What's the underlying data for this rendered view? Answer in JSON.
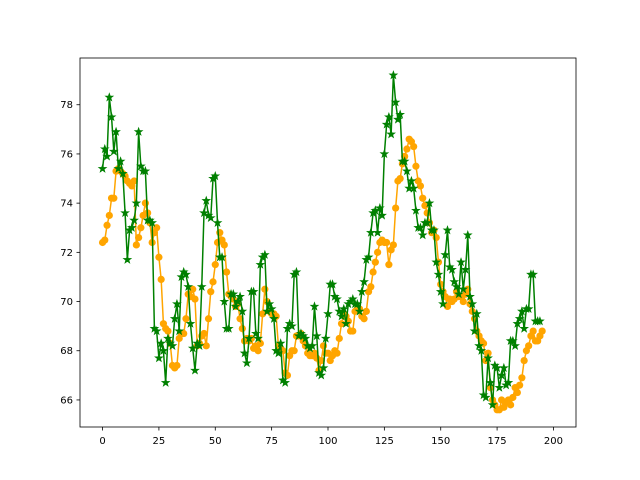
{
  "chart_data": {
    "type": "line",
    "title": "",
    "xlabel": "",
    "ylabel": "",
    "xlim": [
      -10,
      210
    ],
    "ylim": [
      64.9,
      79.9
    ],
    "x_ticks": [
      0,
      25,
      50,
      75,
      100,
      125,
      150,
      175,
      200
    ],
    "y_ticks": [
      66,
      68,
      70,
      72,
      74,
      76,
      78
    ],
    "grid": false,
    "legend": "none",
    "series": [
      {
        "color": "#FFA500",
        "marker": "circle",
        "values": [
          72.4,
          72.5,
          73.1,
          73.5,
          74.2,
          74.2,
          75.3,
          75.4,
          75.3,
          75.2,
          75.1,
          74.9,
          74.8,
          74.7,
          74.9,
          72.3,
          72.6,
          73.0,
          73.5,
          74.0,
          73.6,
          73.2,
          72.4,
          72.8,
          73.0,
          71.8,
          70.9,
          69.1,
          68.9,
          68.8,
          68.3,
          67.4,
          67.3,
          67.4,
          68.5,
          68.7,
          68.7,
          69.3,
          70.3,
          70.2,
          70.5,
          70.1,
          68.2,
          68.3,
          68.6,
          68.7,
          68.2,
          69.3,
          70.4,
          70.8,
          71.5,
          72.4,
          72.8,
          72.5,
          72.3,
          71.2,
          70.3,
          70.2,
          70.1,
          69.8,
          69.9,
          69.3,
          68.9,
          68.4,
          68.5,
          68.4,
          68.5,
          68.1,
          68.2,
          68.0,
          68.3,
          69.5,
          70.5,
          70.0,
          69.6,
          69.5,
          69.5,
          69.4,
          68.2,
          68.1,
          68.0,
          67.1,
          67.0,
          67.8,
          68.0,
          68.0,
          68.6,
          68.6,
          68.7,
          68.4,
          68.2,
          67.9,
          67.8,
          67.8,
          67.9,
          67.7,
          67.2,
          67.6,
          68.2,
          67.9,
          67.9,
          67.6,
          67.8,
          68.0,
          67.9,
          68.5,
          69.1,
          69.5,
          69.4,
          69.2,
          68.8,
          68.8,
          69.6,
          69.7,
          69.7,
          69.4,
          69.3,
          69.6,
          70.4,
          70.6,
          71.2,
          71.6,
          72.0,
          72.4,
          72.5,
          72.4,
          72.4,
          71.5,
          72.1,
          72.3,
          73.8,
          74.9,
          75.0,
          75.6,
          75.9,
          76.2,
          76.6,
          76.5,
          76.3,
          75.5,
          74.9,
          74.7,
          74.2,
          73.9,
          73.6,
          73.2,
          72.8,
          72.9,
          72.6,
          71.6,
          70.7,
          70.4,
          70.2,
          69.8,
          70.1,
          70.0,
          70.1,
          70.4,
          70.2,
          70.2,
          70.0,
          70.3,
          70.5,
          69.9,
          69.6,
          69.3,
          68.8,
          68.6,
          68.4,
          68.3,
          67.6,
          67.9,
          66.5,
          66.0,
          65.8,
          65.6,
          65.6,
          66.0,
          65.7,
          65.9,
          66.0,
          65.8,
          66.1,
          66.5,
          66.3,
          66.6,
          66.9,
          67.6,
          68.0,
          68.2,
          68.6,
          68.8,
          68.4,
          68.4,
          68.6,
          68.8
        ]
      },
      {
        "color": "#008000",
        "marker": "star",
        "values": [
          75.4,
          76.2,
          75.9,
          78.3,
          77.5,
          76.1,
          76.9,
          75.4,
          75.7,
          75.2,
          73.6,
          71.7,
          72.9,
          73.0,
          73.3,
          74.0,
          76.9,
          75.5,
          75.3,
          75.3,
          73.3,
          73.3,
          73.2,
          68.9,
          68.8,
          67.7,
          68.3,
          68.0,
          66.7,
          68.5,
          68.3,
          68.2,
          69.3,
          69.9,
          68.8,
          71.0,
          71.2,
          71.1,
          70.6,
          69.1,
          68.1,
          67.2,
          68.3,
          68.2,
          70.6,
          73.6,
          74.1,
          73.5,
          73.4,
          75.0,
          75.1,
          73.2,
          71.8,
          71.8,
          70.0,
          68.9,
          68.9,
          70.3,
          70.3,
          69.8,
          70.0,
          70.2,
          69.6,
          67.9,
          67.5,
          68.5,
          70.4,
          70.4,
          68.7,
          68.5,
          71.5,
          71.8,
          71.9,
          69.6,
          69.9,
          69.7,
          69.3,
          68.0,
          67.9,
          68.3,
          66.8,
          66.7,
          68.9,
          69.1,
          69.0,
          71.1,
          71.2,
          68.6,
          68.7,
          68.6,
          68.5,
          68.2,
          68.1,
          68.2,
          69.8,
          68.6,
          67.1,
          67.0,
          67.3,
          68.5,
          69.5,
          70.7,
          70.7,
          70.2,
          70.1,
          69.6,
          69.4,
          69.7,
          69.1,
          69.9,
          70.0,
          70.1,
          69.9,
          69.9,
          69.6,
          70.4,
          70.8,
          71.7,
          71.8,
          72.8,
          73.6,
          73.7,
          72.8,
          73.8,
          73.5,
          76.0,
          77.2,
          77.5,
          76.8,
          79.2,
          78.1,
          77.4,
          77.6,
          75.7,
          75.7,
          75.3,
          74.6,
          74.9,
          74.6,
          73.7,
          73.0,
          73.0,
          72.7,
          73.2,
          73.2,
          74.0,
          72.9,
          72.9,
          71.6,
          71.1,
          70.4,
          69.9,
          71.9,
          72.9,
          71.4,
          71.3,
          70.8,
          70.6,
          70.3,
          71.6,
          70.5,
          71.3,
          72.7,
          70.2,
          69.9,
          68.8,
          69.5,
          68.2,
          68.0,
          66.2,
          66.1,
          67.7,
          66.7,
          65.8,
          67.4,
          67.3,
          66.5,
          67.0,
          67.3,
          66.6,
          66.7,
          68.4,
          68.4,
          68.2,
          69.1,
          69.3,
          69.6,
          68.9,
          69.7,
          69.7,
          71.1,
          71.1,
          69.2,
          69.2,
          69.2
        ]
      }
    ]
  }
}
